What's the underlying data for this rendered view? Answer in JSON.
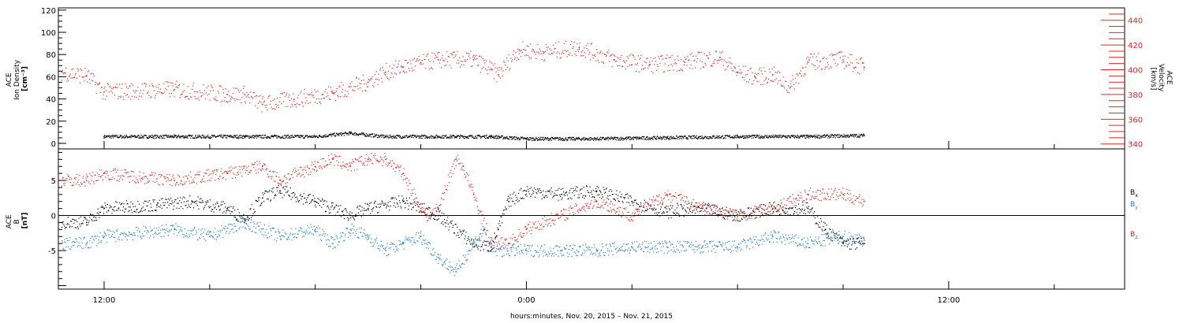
{
  "chart_data": [
    {
      "type": "scatter",
      "panel": "top",
      "ylabel_left_lines": [
        "ACE",
        "Ion Density",
        "[cm⁻³]"
      ],
      "ylabel_right_lines": [
        "ACE",
        "Velocity",
        "[km/s]"
      ],
      "ylim_left": [
        -5,
        122
      ],
      "yticks_left": [
        0,
        20,
        40,
        60,
        80,
        100,
        120
      ],
      "ylim_right": [
        336,
        450
      ],
      "yticks_right": [
        340,
        360,
        380,
        400,
        420,
        440
      ],
      "xlim_hours": [
        -13.3,
        17
      ],
      "series": [
        {
          "axis": "left",
          "color": "#000000",
          "x": [
            -12.0,
            -10.0,
            -8.0,
            -6.0,
            -5.0,
            -4.0,
            -2.0,
            -1.0,
            0.0,
            2.0,
            4.0,
            6.0,
            8.0,
            9.6
          ],
          "y": [
            6,
            6,
            6,
            6,
            9,
            6,
            6,
            6,
            4,
            4,
            5,
            6,
            6,
            7
          ]
        },
        {
          "axis": "right",
          "color": "#e8251f",
          "x": [
            -13.2,
            -12.5,
            -12.0,
            -10.0,
            -8.5,
            -8.0,
            -7.5,
            -6.6,
            -5.5,
            -4.5,
            -4.0,
            -3.5,
            -2.5,
            -1.5,
            -1.0,
            -0.8,
            -0.2,
            0.5,
            1.5,
            2.5,
            3.5,
            4.5,
            5.5,
            6.0,
            6.5,
            7.0,
            7.5,
            8.0,
            9.0,
            9.6
          ],
          "y": [
            398,
            395,
            382,
            384,
            380,
            380,
            372,
            376,
            381,
            390,
            398,
            402,
            408,
            408,
            400,
            396,
            416,
            414,
            418,
            408,
            404,
            406,
            410,
            398,
            394,
            396,
            386,
            406,
            408,
            402
          ]
        }
      ]
    },
    {
      "type": "scatter",
      "panel": "bottom",
      "ylabel_lines": [
        "ACE",
        "B",
        "[nT]"
      ],
      "ylim": [
        -10.5,
        9.5
      ],
      "yticks": [
        -5,
        0,
        5
      ],
      "xlim_hours": [
        -13.3,
        17
      ],
      "legend": [
        "B",
        "B",
        "B"
      ],
      "legend_subs": [
        "x",
        "y",
        "z"
      ],
      "legend_position": "right",
      "series": [
        {
          "name": "Bx",
          "color": "#000000",
          "x": [
            -13.2,
            -12.5,
            -12.0,
            -10.5,
            -9.5,
            -8.5,
            -8.0,
            -7.5,
            -7.0,
            -6.0,
            -5.0,
            -4.5,
            -3.5,
            -2.5,
            -1.5,
            -1.0,
            -0.8,
            -0.5,
            0.0,
            1.0,
            2.0,
            3.0,
            4.0,
            5.0,
            6.0,
            7.0,
            8.0,
            8.5,
            9.0,
            9.6
          ],
          "y": [
            -1,
            -1,
            1,
            1.5,
            2,
            1,
            -0.5,
            2.5,
            3.5,
            2,
            0,
            1,
            2,
            0,
            -4,
            -4.5,
            -2,
            2,
            3.5,
            3,
            3.5,
            2,
            0.5,
            1,
            0,
            1,
            1,
            -2,
            -4,
            -4
          ]
        },
        {
          "name": "By",
          "color": "#1f7fd0",
          "x": [
            -13.2,
            -12.5,
            -12.0,
            -10.0,
            -9.0,
            -8.0,
            -7.0,
            -6.0,
            -5.5,
            -5.0,
            -4.5,
            -4.0,
            -3.5,
            -3.0,
            -2.5,
            -2.0,
            -1.5,
            -1.2,
            -1.0,
            0.0,
            1.0,
            2.0,
            3.0,
            4.0,
            5.0,
            6.0,
            7.0,
            8.0,
            9.0,
            9.6
          ],
          "y": [
            -4,
            -4,
            -3,
            -2,
            -3,
            -1,
            -3,
            -2,
            -4,
            -2,
            -3,
            -5,
            -4,
            -3,
            -6,
            -8,
            -4,
            -2,
            -5,
            -5,
            -5,
            -5,
            -4.5,
            -4.5,
            -4.5,
            -4.5,
            -3,
            -4,
            -3,
            -3.5
          ]
        },
        {
          "name": "Bz",
          "color": "#e8251f",
          "x": [
            -13.2,
            -12.5,
            -12.0,
            -10.0,
            -8.5,
            -7.5,
            -7.0,
            -6.0,
            -5.5,
            -5.0,
            -4.5,
            -4.0,
            -3.5,
            -3.0,
            -2.8,
            -2.5,
            -2.0,
            -1.8,
            -1.5,
            -1.0,
            -0.5,
            0.0,
            1.0,
            2.0,
            3.0,
            4.0,
            5.0,
            6.0,
            7.0,
            8.0,
            9.0,
            9.6
          ],
          "y": [
            5,
            5,
            6,
            5,
            6,
            7,
            5,
            7,
            8,
            7,
            8,
            8,
            6,
            1,
            0,
            1,
            8,
            7,
            3,
            -4,
            -4,
            -2,
            0,
            2,
            0,
            3,
            1,
            0,
            1,
            3,
            3,
            2
          ]
        }
      ]
    }
  ],
  "x_axis": {
    "ticks": [
      {
        "hour": -12,
        "label": "12:00"
      },
      {
        "hour": 0,
        "label": "0:00"
      },
      {
        "hour": 12,
        "label": "12:00"
      }
    ],
    "title": "hours:minutes, Nov. 20, 2015 – Nov. 21, 2015"
  }
}
